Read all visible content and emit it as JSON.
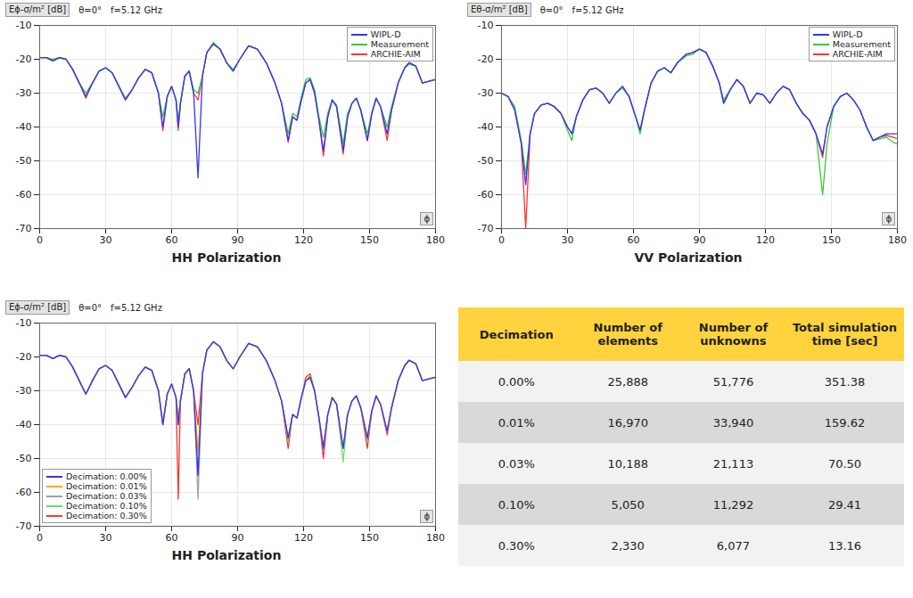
{
  "chart_data": [
    {
      "type": "line",
      "ylabel": "Eϕ-σ/m² [dB]",
      "annotations": [
        "θ=0°",
        "f=5.12 GHz"
      ],
      "xlabel": "ϕ",
      "caption": "HH Polarization",
      "x": [
        0,
        3,
        6,
        9,
        12,
        15,
        18,
        21,
        24,
        27,
        30,
        33,
        36,
        39,
        42,
        45,
        48,
        51,
        54,
        56,
        58,
        60,
        62,
        63,
        64,
        66,
        68,
        70,
        72,
        74,
        76,
        79,
        82,
        85,
        88,
        91,
        95,
        99,
        103,
        107,
        110,
        113,
        115,
        117,
        119,
        121,
        123,
        125,
        127,
        129,
        131,
        133,
        135,
        138,
        140,
        142,
        144,
        146,
        149,
        151,
        153,
        155,
        158,
        160,
        163,
        166,
        168,
        171,
        174,
        177,
        180
      ],
      "series": [
        {
          "name": "WIPL-D",
          "color": "#3333ff",
          "values": [
            -19.5,
            -19.5,
            -20.5,
            -19.5,
            -20,
            -23,
            -27,
            -31,
            -27,
            -23.5,
            -22.5,
            -24,
            -28,
            -32,
            -29,
            -25.5,
            -23,
            -24,
            -30,
            -40,
            -31,
            -28,
            -32,
            -40,
            -33,
            -25,
            -23.5,
            -30,
            -55,
            -25,
            -18,
            -15.5,
            -17,
            -21,
            -23.5,
            -20,
            -16,
            -17,
            -21,
            -27,
            -33,
            -44,
            -37,
            -38,
            -32,
            -27,
            -26,
            -30,
            -38,
            -47,
            -37,
            -32,
            -34,
            -47,
            -37,
            -33,
            -31.5,
            -35,
            -44,
            -36,
            -31.5,
            -34,
            -42,
            -35,
            -27,
            -22.5,
            -21,
            -22,
            -27,
            -26.5,
            -26
          ]
        },
        {
          "name": "Measurement",
          "color": "#33cc33",
          "values": [
            -19.5,
            -19.5,
            -20,
            -19.5,
            -20,
            -23,
            -27,
            -30,
            -27,
            -23.5,
            -22.5,
            -24,
            -28,
            -31.5,
            -29,
            -25.5,
            -23,
            -24,
            -30,
            -37,
            -31,
            -28,
            -32,
            -38,
            -33,
            -25,
            -23.5,
            -29,
            -30,
            -25,
            -18,
            -15,
            -17,
            -21,
            -23,
            -20,
            -16,
            -17,
            -21,
            -27,
            -33,
            -42,
            -36,
            -37,
            -31,
            -26,
            -25.5,
            -29,
            -37,
            -43,
            -36,
            -32,
            -33.5,
            -45,
            -36,
            -33,
            -31.5,
            -35,
            -42,
            -36,
            -31.5,
            -34,
            -40,
            -34,
            -27,
            -22.5,
            -21.5,
            -22,
            -27,
            -26.5,
            -26
          ]
        },
        {
          "name": "ARCHIE-AIM",
          "color": "#ff3333",
          "values": [
            -19.5,
            -19.5,
            -20.5,
            -19.5,
            -20,
            -23,
            -27,
            -31.5,
            -27,
            -23.5,
            -22.5,
            -24,
            -28,
            -32,
            -29,
            -25.5,
            -23,
            -24,
            -30,
            -41,
            -31,
            -28,
            -32,
            -41,
            -33,
            -25,
            -23.5,
            -30,
            -32,
            -25,
            -18,
            -15.5,
            -17,
            -21,
            -23.5,
            -20,
            -16,
            -17,
            -21,
            -27,
            -33,
            -44.5,
            -37,
            -38,
            -32,
            -27,
            -26,
            -30,
            -38,
            -48.5,
            -37,
            -32,
            -34,
            -48,
            -37,
            -33,
            -31.5,
            -35,
            -44,
            -36,
            -31.5,
            -34,
            -44,
            -35,
            -27,
            -22.5,
            -21,
            -22,
            -27,
            -26.5,
            -26
          ]
        }
      ],
      "xlim": [
        0,
        180
      ],
      "ylim": [
        -70,
        -10
      ],
      "xticks": [
        0,
        30,
        60,
        90,
        120,
        150,
        180
      ],
      "yticks": [
        -70,
        -60,
        -50,
        -40,
        -30,
        -20,
        -10
      ],
      "grid": true,
      "legend": "top-right"
    },
    {
      "type": "line",
      "ylabel": "Eθ-σ/m² [dB]",
      "annotations": [
        "θ=0°",
        "f=5.12 GHz"
      ],
      "xlabel": "ϕ",
      "caption": "VV Polarization",
      "x": [
        0,
        3,
        6,
        9,
        11,
        13,
        15,
        18,
        21,
        24,
        27,
        30,
        32,
        34,
        37,
        40,
        43,
        46,
        49,
        52,
        55,
        58,
        61,
        63,
        65,
        68,
        71,
        74,
        77,
        80,
        84,
        87,
        90,
        93,
        96,
        99,
        101,
        104,
        107,
        110,
        113,
        116,
        119,
        122,
        125,
        128,
        131,
        134,
        137,
        140,
        143,
        146,
        148,
        151,
        154,
        157,
        160,
        163,
        166,
        169,
        172,
        175,
        178,
        180
      ],
      "series": [
        {
          "name": "WIPL-D",
          "color": "#3333ff",
          "values": [
            -30,
            -31,
            -35,
            -45,
            -57,
            -42,
            -36,
            -33.5,
            -33,
            -34,
            -36,
            -40,
            -42,
            -37,
            -32,
            -29,
            -28.5,
            -30,
            -33,
            -30,
            -28,
            -31,
            -37,
            -41,
            -35,
            -27,
            -23.5,
            -22.5,
            -24,
            -21,
            -18.5,
            -18,
            -17,
            -18,
            -22,
            -27,
            -33,
            -29,
            -26,
            -28,
            -33,
            -30,
            -30.5,
            -33,
            -30,
            -28,
            -29,
            -33,
            -36,
            -38,
            -42,
            -48,
            -40,
            -34,
            -31,
            -30,
            -32,
            -35,
            -40,
            -44,
            -43,
            -42,
            -42,
            -42
          ]
        },
        {
          "name": "Measurement",
          "color": "#33cc33",
          "values": [
            -30,
            -31,
            -34,
            -44,
            -54,
            -42,
            -36,
            -33.5,
            -33,
            -34,
            -36,
            -41,
            -44,
            -37,
            -32,
            -29,
            -28.5,
            -30,
            -33,
            -30,
            -28.5,
            -31,
            -37,
            -42,
            -35,
            -27,
            -23.5,
            -22.5,
            -24,
            -21,
            -19,
            -18.5,
            -17,
            -18,
            -22,
            -27,
            -32,
            -29,
            -26,
            -28,
            -33,
            -30,
            -30.5,
            -33,
            -30,
            -28,
            -29,
            -33,
            -36,
            -38,
            -42,
            -60,
            -45,
            -34,
            -31,
            -30,
            -32,
            -35,
            -40,
            -44,
            -43.5,
            -43,
            -44.5,
            -45
          ]
        },
        {
          "name": "ARCHIE-AIM",
          "color": "#ff3333",
          "values": [
            -30,
            -31,
            -35,
            -45,
            -70,
            -42,
            -36,
            -33.5,
            -33,
            -34,
            -36,
            -40,
            -42,
            -37,
            -32,
            -29,
            -28.5,
            -30,
            -33,
            -30,
            -28,
            -31,
            -37,
            -41,
            -35,
            -27,
            -23.5,
            -22.5,
            -24,
            -21,
            -18.5,
            -18,
            -17,
            -18,
            -22,
            -27,
            -33,
            -29,
            -26,
            -28,
            -33,
            -30,
            -30.5,
            -33,
            -30,
            -28,
            -29,
            -33,
            -36,
            -38,
            -42,
            -49,
            -40,
            -34,
            -31,
            -30,
            -32,
            -35,
            -40,
            -44,
            -43,
            -42.5,
            -43,
            -43.5
          ]
        }
      ],
      "xlim": [
        0,
        180
      ],
      "ylim": [
        -70,
        -10
      ],
      "xticks": [
        0,
        30,
        60,
        90,
        120,
        150,
        180
      ],
      "yticks": [
        -70,
        -60,
        -50,
        -40,
        -30,
        -20,
        -10
      ],
      "grid": true,
      "legend": "top-right"
    },
    {
      "type": "line",
      "ylabel": "Eϕ-σ/m² [dB]",
      "annotations": [
        "θ=0°",
        "f=5.12 GHz"
      ],
      "xlabel": "ϕ",
      "caption": "HH Polarization",
      "x": [
        0,
        3,
        6,
        9,
        12,
        15,
        18,
        21,
        24,
        27,
        30,
        33,
        36,
        39,
        42,
        45,
        48,
        51,
        54,
        56,
        58,
        60,
        62,
        63,
        64,
        66,
        68,
        70,
        72,
        74,
        76,
        79,
        82,
        85,
        88,
        91,
        95,
        99,
        103,
        107,
        110,
        113,
        115,
        117,
        119,
        121,
        123,
        125,
        127,
        129,
        131,
        133,
        135,
        138,
        140,
        142,
        144,
        146,
        149,
        151,
        153,
        155,
        158,
        160,
        163,
        166,
        168,
        171,
        174,
        177,
        180
      ],
      "series": [
        {
          "name": "Decimation: 0.00%",
          "color": "#3333ff",
          "values": [
            -19.5,
            -19.5,
            -20.5,
            -19.5,
            -20,
            -23,
            -27,
            -31,
            -27,
            -23.5,
            -22.5,
            -24,
            -28,
            -32,
            -29,
            -25.5,
            -23,
            -24,
            -30,
            -40,
            -31,
            -28,
            -32,
            -40,
            -33,
            -25,
            -23.5,
            -30,
            -55,
            -25,
            -18,
            -15.5,
            -17,
            -21,
            -23.5,
            -20,
            -16,
            -17,
            -21,
            -27,
            -33,
            -44,
            -37,
            -38,
            -32,
            -27,
            -26,
            -30,
            -38,
            -47,
            -37,
            -32,
            -34,
            -47,
            -37,
            -33,
            -31.5,
            -35,
            -44,
            -36,
            -31.5,
            -34,
            -42,
            -35,
            -27,
            -22.5,
            -21,
            -22,
            -27,
            -26.5,
            -26
          ]
        },
        {
          "name": "Decimation: 0.01%",
          "color": "#ffa500",
          "values": [
            -19.5,
            -19.5,
            -20.5,
            -19.5,
            -20,
            -23,
            -27,
            -31,
            -27,
            -23.5,
            -22.5,
            -24,
            -28,
            -32,
            -29,
            -25.5,
            -23,
            -24,
            -30,
            -40,
            -31,
            -28,
            -32,
            -38,
            -33,
            -25,
            -23.5,
            -30,
            -48,
            -25,
            -18,
            -15.5,
            -17,
            -21,
            -23.5,
            -20,
            -16,
            -17,
            -21,
            -27,
            -33,
            -44,
            -37,
            -38,
            -32,
            -27,
            -25.5,
            -30,
            -38,
            -46,
            -37,
            -32,
            -34,
            -47,
            -37,
            -33,
            -31.5,
            -35,
            -44,
            -36,
            -31.5,
            -34,
            -42,
            -35,
            -27,
            -22.5,
            -21,
            -22,
            -27,
            -26.5,
            -26
          ]
        },
        {
          "name": "Decimation: 0.03%",
          "color": "#a0a0a0",
          "values": [
            -19.5,
            -19.5,
            -20.5,
            -19.5,
            -20,
            -23,
            -27,
            -31,
            -27,
            -23.5,
            -22.5,
            -24,
            -28,
            -32,
            -29,
            -25.5,
            -23,
            -24,
            -30,
            -40,
            -31,
            -28,
            -32,
            -39,
            -33,
            -25,
            -23.5,
            -30,
            -62,
            -25,
            -18,
            -15.5,
            -17,
            -21,
            -23.5,
            -20,
            -16,
            -17,
            -21,
            -27,
            -33,
            -44,
            -37,
            -38,
            -32,
            -27,
            -26,
            -30,
            -38,
            -47.5,
            -37,
            -32,
            -34,
            -47,
            -37,
            -33,
            -31.5,
            -35,
            -44,
            -36,
            -31.5,
            -34,
            -42,
            -35,
            -27,
            -22.5,
            -21,
            -22,
            -27,
            -26.5,
            -26
          ]
        },
        {
          "name": "Decimation: 0.10%",
          "color": "#66dd66",
          "values": [
            -19.5,
            -19.5,
            -20.5,
            -19.5,
            -20,
            -23,
            -27,
            -31,
            -27,
            -23.5,
            -22.5,
            -24,
            -28,
            -32,
            -29,
            -25.5,
            -23,
            -24,
            -30,
            -39,
            -31,
            -28,
            -32,
            -40,
            -33,
            -25,
            -23.5,
            -30,
            -55,
            -25,
            -18,
            -15.5,
            -17,
            -21,
            -23.5,
            -20,
            -16,
            -17,
            -21,
            -27,
            -33,
            -45,
            -37,
            -38,
            -32,
            -27,
            -26.5,
            -30,
            -38,
            -47,
            -37,
            -32,
            -34,
            -51,
            -37,
            -33,
            -31.5,
            -35,
            -45,
            -36,
            -31.5,
            -34,
            -42,
            -35,
            -27,
            -22.5,
            -21,
            -22,
            -27,
            -26.5,
            -26
          ]
        },
        {
          "name": "Decimation: 0.30%",
          "color": "#ff3333",
          "values": [
            -19.5,
            -19.5,
            -20.5,
            -19.5,
            -20,
            -23,
            -27,
            -31,
            -27,
            -23.5,
            -22.5,
            -24,
            -28,
            -32,
            -29,
            -25.5,
            -23,
            -24,
            -30,
            -40,
            -31,
            -28,
            -32,
            -62,
            -33,
            -25,
            -23.5,
            -30,
            -40,
            -25,
            -18,
            -15.5,
            -17,
            -21,
            -23.5,
            -20,
            -16,
            -17,
            -21,
            -27,
            -33,
            -47,
            -37,
            -38,
            -32,
            -26,
            -25,
            -30,
            -38,
            -50,
            -37,
            -32,
            -34,
            -47,
            -37,
            -33,
            -31.5,
            -35,
            -47,
            -36,
            -31.5,
            -34,
            -43,
            -35,
            -27,
            -22.5,
            -21,
            -22,
            -27,
            -26.5,
            -26
          ]
        }
      ],
      "xlim": [
        0,
        180
      ],
      "ylim": [
        -70,
        -10
      ],
      "xticks": [
        0,
        30,
        60,
        90,
        120,
        150,
        180
      ],
      "yticks": [
        -70,
        -60,
        -50,
        -40,
        -30,
        -20,
        -10
      ],
      "grid": true,
      "legend": "bottom-left"
    }
  ],
  "table": {
    "columns": [
      "Decimation",
      "Number of elements",
      "Number of unknowns",
      "Total simulation time [sec]"
    ],
    "rows": [
      [
        "0.00%",
        "25,888",
        "51,776",
        "351.38"
      ],
      [
        "0.01%",
        "16,970",
        "33,940",
        "159.62"
      ],
      [
        "0.03%",
        "10,188",
        "21,113",
        "70.50"
      ],
      [
        "0.10%",
        "5,050",
        "11,292",
        "29.41"
      ],
      [
        "0.30%",
        "2,330",
        "6,077",
        "13.16"
      ]
    ]
  }
}
